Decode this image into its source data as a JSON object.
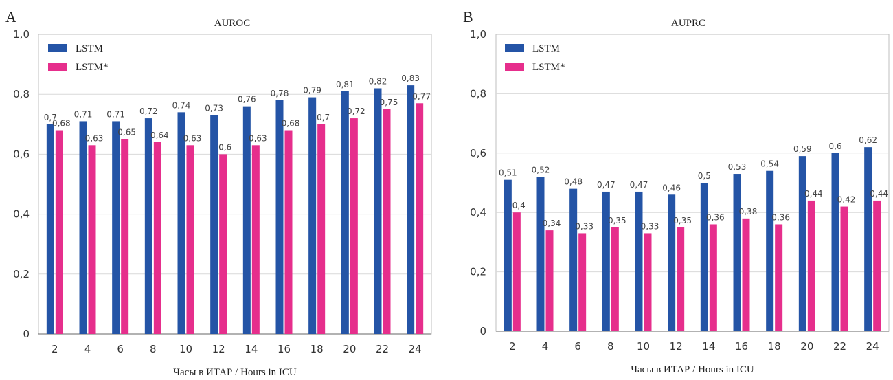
{
  "colors": {
    "lstm": "#2454a6",
    "lstm_star": "#e62e8c"
  },
  "chart_data": [
    {
      "type": "bar",
      "panel": "A",
      "title": "AUROC",
      "xlabel": "Часы в ИТАР / Hours in ICU",
      "ylabel": "",
      "ylim": [
        0,
        1.0
      ],
      "yticks": [
        "0",
        "0,2",
        "0,4",
        "0,6",
        "0,8",
        "1,0"
      ],
      "grid": true,
      "legend": "top-left",
      "categories": [
        "2",
        "4",
        "6",
        "8",
        "10",
        "12",
        "14",
        "16",
        "18",
        "20",
        "22",
        "24"
      ],
      "series": [
        {
          "name": "LSTM",
          "values": [
            0.7,
            0.71,
            0.71,
            0.72,
            0.74,
            0.73,
            0.76,
            0.78,
            0.79,
            0.81,
            0.82,
            0.83
          ],
          "labels": [
            "0,7",
            "0,71",
            "0,71",
            "0,72",
            "0,74",
            "0,73",
            "0,76",
            "0,78",
            "0,79",
            "0,81",
            "0,82",
            "0,83"
          ]
        },
        {
          "name": "LSTM*",
          "values": [
            0.68,
            0.63,
            0.65,
            0.64,
            0.63,
            0.6,
            0.63,
            0.68,
            0.7,
            0.72,
            0.75,
            0.77
          ],
          "labels": [
            "0,68",
            "0,63",
            "0,65",
            "0,64",
            "0,63",
            "0,6",
            "0,63",
            "0,68",
            "0,7",
            "0,72",
            "0,75",
            "0,77"
          ]
        }
      ]
    },
    {
      "type": "bar",
      "panel": "B",
      "title": "AUPRC",
      "xlabel": "Часы в ИТАР / Hours in ICU",
      "ylabel": "",
      "ylim": [
        0,
        1.0
      ],
      "yticks": [
        "0",
        "0,2",
        "0,4",
        "0,6",
        "0,8",
        "1,0"
      ],
      "grid": true,
      "legend": "top-left",
      "categories": [
        "2",
        "4",
        "6",
        "8",
        "10",
        "12",
        "14",
        "16",
        "18",
        "20",
        "22",
        "24"
      ],
      "series": [
        {
          "name": "LSTM",
          "values": [
            0.51,
            0.52,
            0.48,
            0.47,
            0.47,
            0.46,
            0.5,
            0.53,
            0.54,
            0.59,
            0.6,
            0.62
          ],
          "labels": [
            "0,51",
            "0,52",
            "0,48",
            "0,47",
            "0,47",
            "0,46",
            "0,5",
            "0,53",
            "0,54",
            "0,59",
            "0,6",
            "0,62"
          ]
        },
        {
          "name": "LSTM*",
          "values": [
            0.4,
            0.34,
            0.33,
            0.35,
            0.33,
            0.35,
            0.36,
            0.38,
            0.36,
            0.44,
            0.42,
            0.44
          ],
          "labels": [
            "0,4",
            "0,34",
            "0,33",
            "0,35",
            "0,33",
            "0,35",
            "0,36",
            "0,38",
            "0,36",
            "0,44",
            "0,42",
            "0,44"
          ]
        }
      ]
    }
  ]
}
